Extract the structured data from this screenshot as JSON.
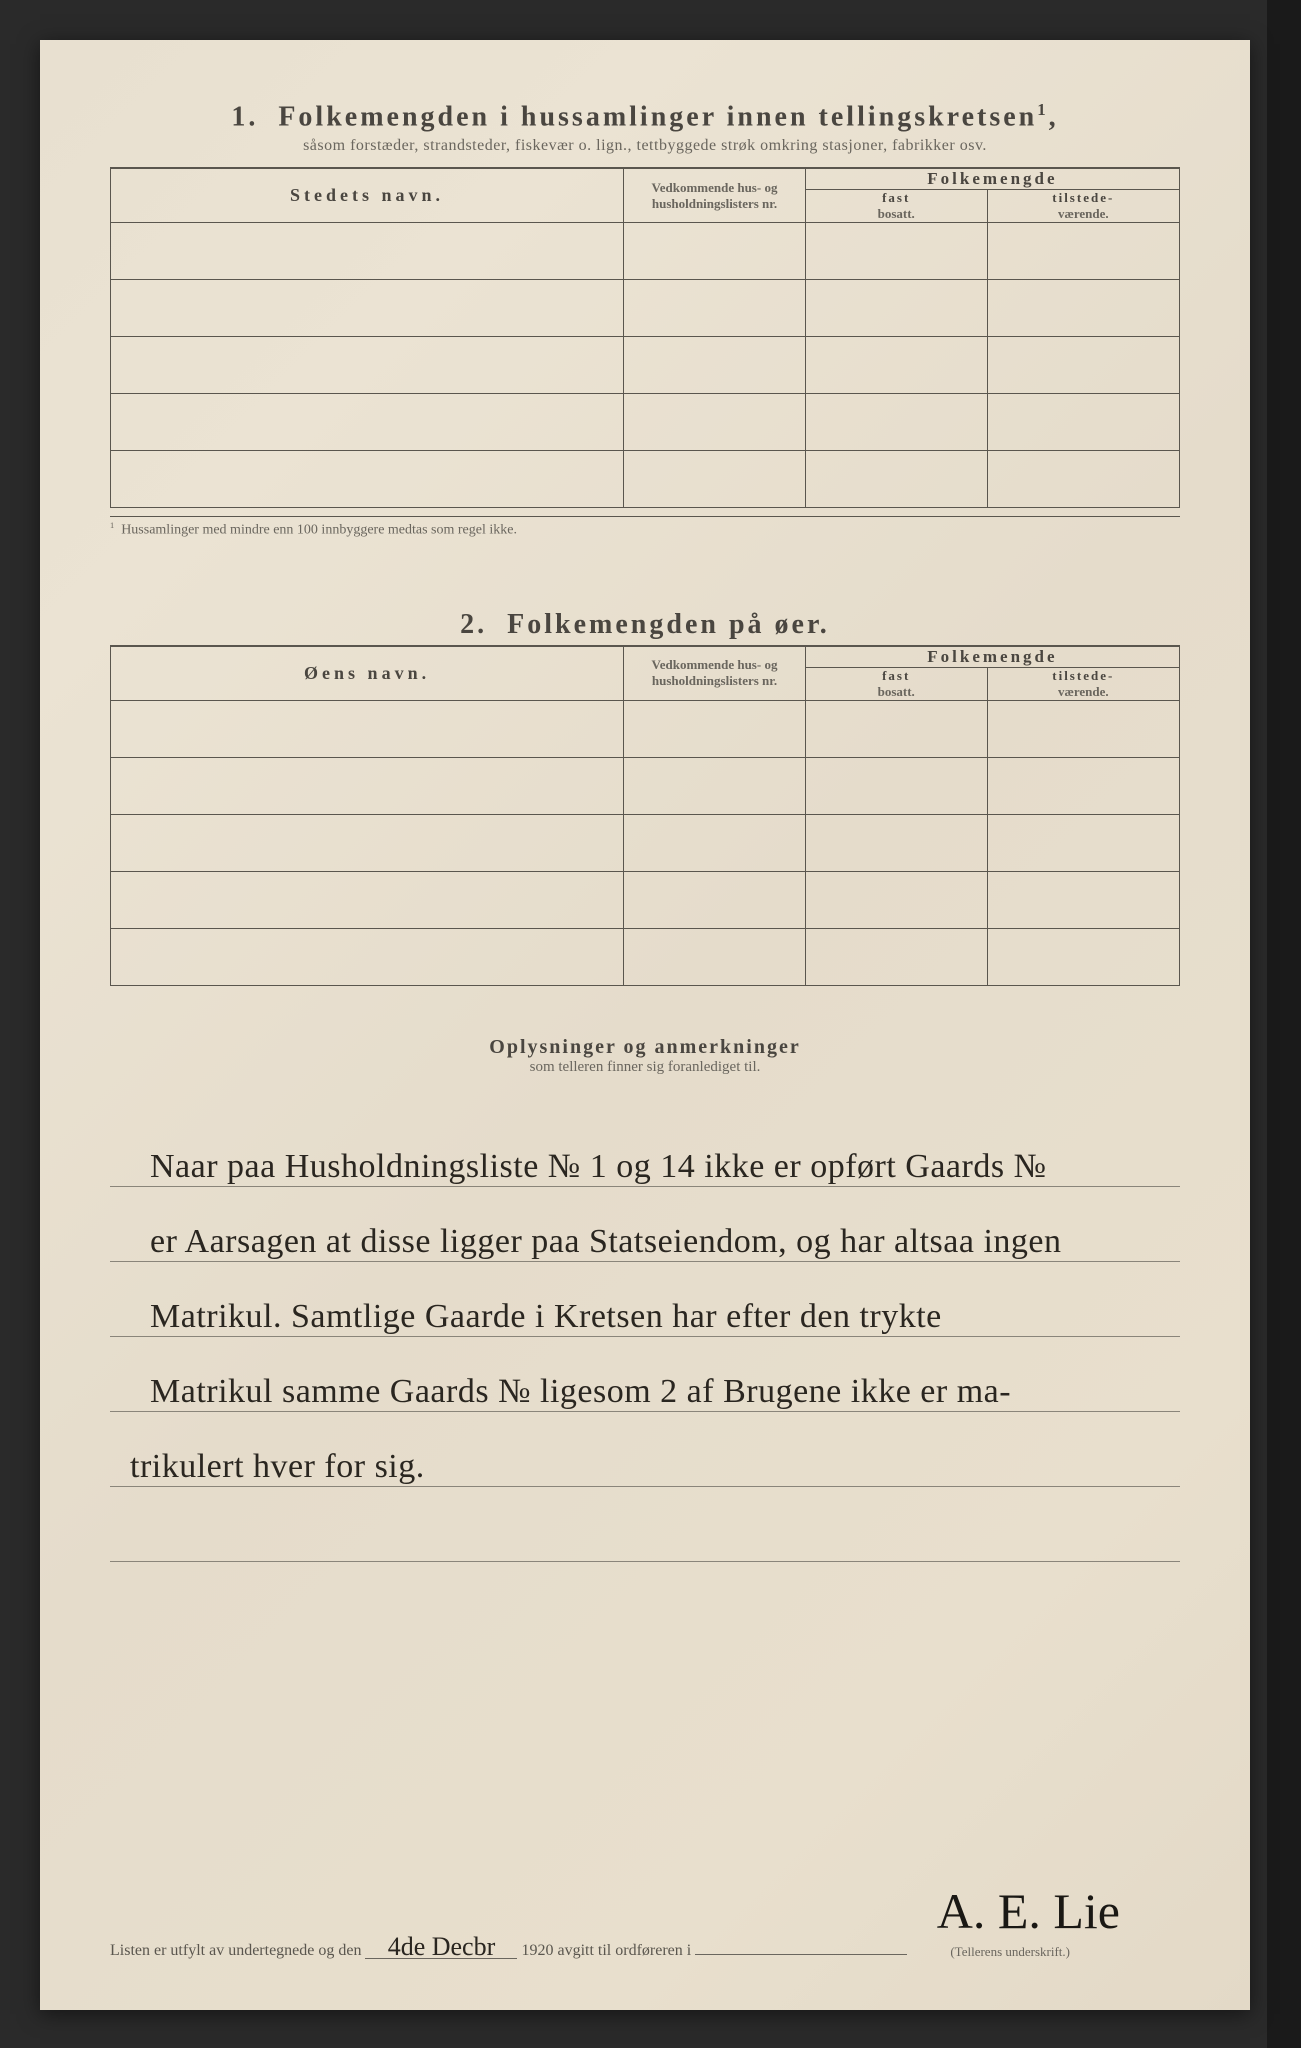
{
  "paper": {
    "background_color": "#e8e0d0",
    "text_color": "#4a4640",
    "rule_color": "#5a564e"
  },
  "section1": {
    "number": "1.",
    "title": "Folkemengden i hussamlinger innen tellingskretsen",
    "title_sup": "1",
    "subtitle": "såsom forstæder, strandsteder, fiskevær o. lign., tettbyggede strøk omkring stasjoner, fabrikker osv.",
    "col_place": "Stedets navn.",
    "col_lists": "Vedkommende hus- og husholdningslisters nr.",
    "col_pop": "Folkemengde",
    "col_fast_b": "fast",
    "col_fast": "bosatt.",
    "col_til_b": "tilstede-",
    "col_til": "værende.",
    "rows": [
      "",
      "",
      "",
      "",
      ""
    ],
    "footnote_mark": "1",
    "footnote": "Hussamlinger med mindre enn 100 innbyggere medtas som regel ikke."
  },
  "section2": {
    "number": "2.",
    "title": "Folkemengden på øer.",
    "col_place": "Øens navn.",
    "col_lists": "Vedkommende hus- og husholdningslisters nr.",
    "col_pop": "Folkemengde",
    "col_fast_b": "fast",
    "col_fast": "bosatt.",
    "col_til_b": "tilstede-",
    "col_til": "værende.",
    "rows": [
      "",
      "",
      "",
      "",
      ""
    ]
  },
  "remarks": {
    "title": "Oplysninger og anmerkninger",
    "subtitle": "som telleren finner sig foranlediget til.",
    "rule_positions": [
      70,
      145,
      220,
      295,
      370,
      445
    ],
    "lines": [
      "Naar paa Husholdningsliste № 1 og 14 ikke er opført Gaards №",
      "er Aarsagen at disse ligger paa Statseiendom, og har altsaa ingen",
      "Matrikul.  Samtlige Gaarde i Kretsen har efter den trykte",
      "Matrikul samme Gaards № ligesom 2 af Brugene ikke er ma-",
      "trikulert hver for sig."
    ]
  },
  "footer": {
    "prefix": "Listen er utfylt av undertegnede og den",
    "date_hand": "4de Decbr",
    "year": "1920",
    "suffix": "avgitt til ordføreren i",
    "signature": "A. E. Lie",
    "sig_caption": "(Tellerens underskrift.)"
  }
}
